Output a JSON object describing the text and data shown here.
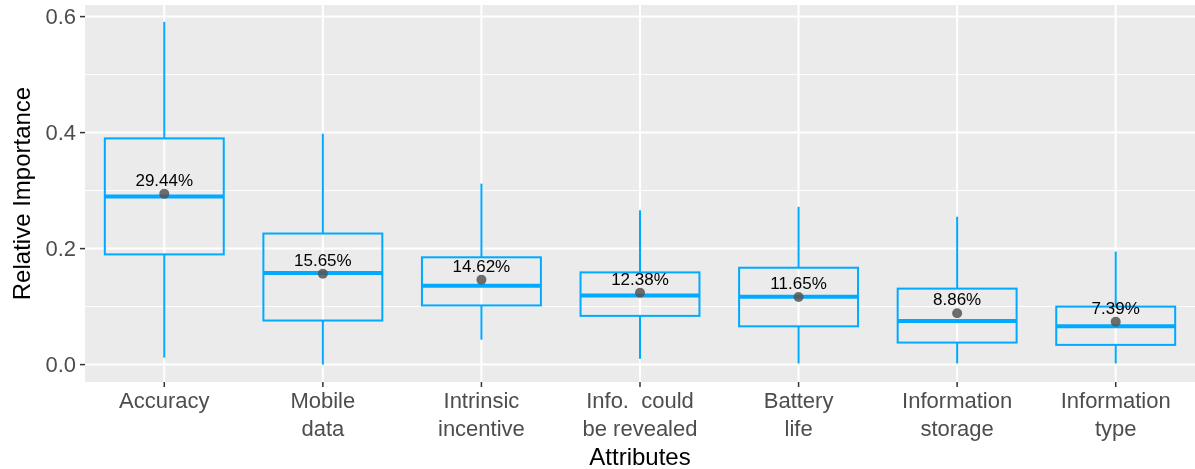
{
  "chart_data": {
    "type": "box",
    "xlabel": "Attributes",
    "ylabel": "Relative Importance",
    "categories": [
      "Accuracy",
      "Mobile\ndata",
      "Intrinsic\nincentive",
      "Info.  could\nbe revealed",
      "Battery\nlife",
      "Information\nstorage",
      "Information\ntype"
    ],
    "color": "#00aaff",
    "boxes": [
      {
        "low": 0.012,
        "q1": 0.19,
        "median": 0.29,
        "q3": 0.39,
        "high": 0.591,
        "mean": 0.2944
      },
      {
        "low": 0.0,
        "q1": 0.076,
        "median": 0.158,
        "q3": 0.226,
        "high": 0.398,
        "mean": 0.1565
      },
      {
        "low": 0.043,
        "q1": 0.102,
        "median": 0.136,
        "q3": 0.185,
        "high": 0.312,
        "mean": 0.1462
      },
      {
        "low": 0.01,
        "q1": 0.084,
        "median": 0.119,
        "q3": 0.159,
        "high": 0.266,
        "mean": 0.1238
      },
      {
        "low": 0.002,
        "q1": 0.066,
        "median": 0.117,
        "q3": 0.167,
        "high": 0.272,
        "mean": 0.1165
      },
      {
        "low": 0.002,
        "q1": 0.038,
        "median": 0.075,
        "q3": 0.131,
        "high": 0.255,
        "mean": 0.0886
      },
      {
        "low": 0.002,
        "q1": 0.034,
        "median": 0.066,
        "q3": 0.1,
        "high": 0.195,
        "mean": 0.0739
      }
    ],
    "annotations": [
      "29.44%",
      "15.65%",
      "14.62%",
      "12.38%",
      "11.65%",
      "8.86%",
      "7.39%"
    ],
    "ylim": [
      -0.03,
      0.62
    ],
    "yticks": [
      {
        "value": 0,
        "label": "0.0"
      },
      {
        "value": 0.1,
        "label": null
      },
      {
        "value": 0.2,
        "label": "0.2"
      },
      {
        "value": 0.3,
        "label": null
      },
      {
        "value": 0.4,
        "label": "0.4"
      },
      {
        "value": 0.5,
        "label": null
      },
      {
        "value": 0.6,
        "label": "0.6"
      }
    ],
    "grid": true
  }
}
